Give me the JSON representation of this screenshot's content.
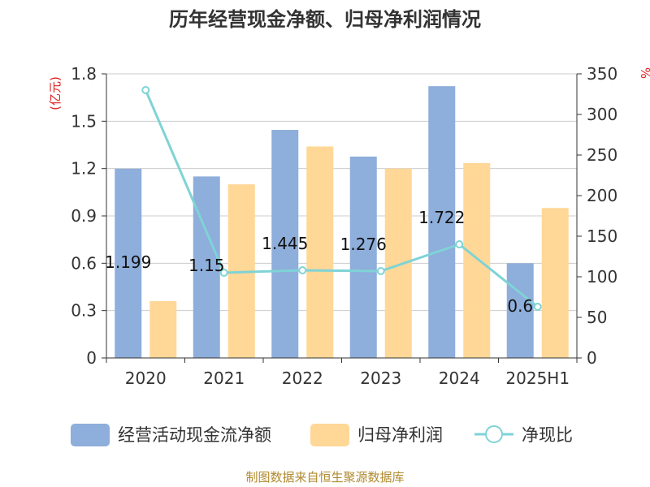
{
  "chart_data": {
    "type": "bar",
    "title": "历年经营现金净额、归母净利润情况",
    "categories": [
      "2020",
      "2021",
      "2022",
      "2023",
      "2024",
      "2025H1"
    ],
    "series": [
      {
        "name": "经营活动现金流净额",
        "type": "bar",
        "axis": "left",
        "color": "#8eaedb",
        "values": [
          1.199,
          1.15,
          1.445,
          1.276,
          1.722,
          0.6
        ]
      },
      {
        "name": "归母净利润",
        "type": "bar",
        "axis": "left",
        "color": "#ffd797",
        "values": [
          0.36,
          1.1,
          1.34,
          1.2,
          1.235,
          0.95
        ]
      },
      {
        "name": "净现比",
        "type": "line",
        "axis": "right",
        "color": "#7fd3d6",
        "values": [
          330,
          105,
          108,
          107,
          140,
          63
        ]
      }
    ],
    "data_labels": [
      "1.199",
      "1.15",
      "1.445",
      "1.276",
      "1.722",
      "0.6"
    ],
    "y_left": {
      "label": "(亿元)",
      "ticks": [
        "0",
        "0.3",
        "0.6",
        "0.9",
        "1.2",
        "1.5",
        "1.8"
      ],
      "lim": [
        0,
        1.8
      ]
    },
    "y_right": {
      "label": "%",
      "ticks": [
        "0",
        "50",
        "100",
        "150",
        "200",
        "250",
        "300",
        "350"
      ],
      "lim": [
        0,
        350
      ]
    },
    "grid": true,
    "legend_position": "bottom"
  },
  "source_note": "制图数据来自恒生聚源数据库"
}
